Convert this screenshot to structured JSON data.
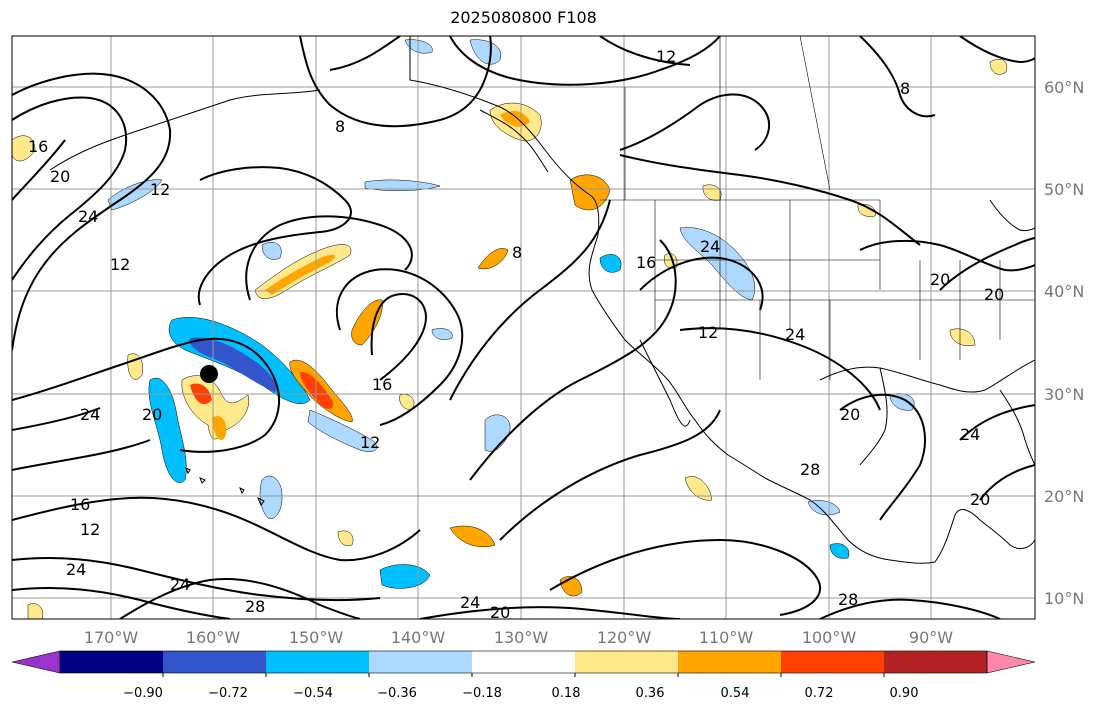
{
  "title": "2025080800 F108",
  "lon_ticks": [
    "170°W",
    "160°W",
    "150°W",
    "140°W",
    "130°W",
    "120°W",
    "110°W",
    "100°W",
    "90°W"
  ],
  "lat_ticks": [
    "60°N",
    "50°N",
    "40°N",
    "30°N",
    "20°N",
    "10°N"
  ],
  "colorbar": {
    "ticks": [
      "−0.90",
      "−0.72",
      "−0.54",
      "−0.36",
      "−0.18",
      "0.18",
      "0.36",
      "0.54",
      "0.72",
      "0.90"
    ],
    "colors": [
      "#9933cc",
      "#000080",
      "#3355cc",
      "#00bfff",
      "#add8ff",
      "#ffffff",
      "#ffe98a",
      "#ffa500",
      "#ff4000",
      "#b22222",
      "#ff88aa"
    ]
  },
  "contour_labels": [
    "12",
    "16",
    "20",
    "24",
    "12",
    "8",
    "8",
    "12",
    "20",
    "24",
    "16",
    "16",
    "8",
    "12",
    "24",
    "20",
    "20",
    "24",
    "28",
    "24",
    "16",
    "12",
    "24",
    "24",
    "28",
    "20",
    "24",
    "28",
    "12",
    "20",
    "20"
  ],
  "marker": {
    "lon": -160,
    "lat": 31.5
  }
}
